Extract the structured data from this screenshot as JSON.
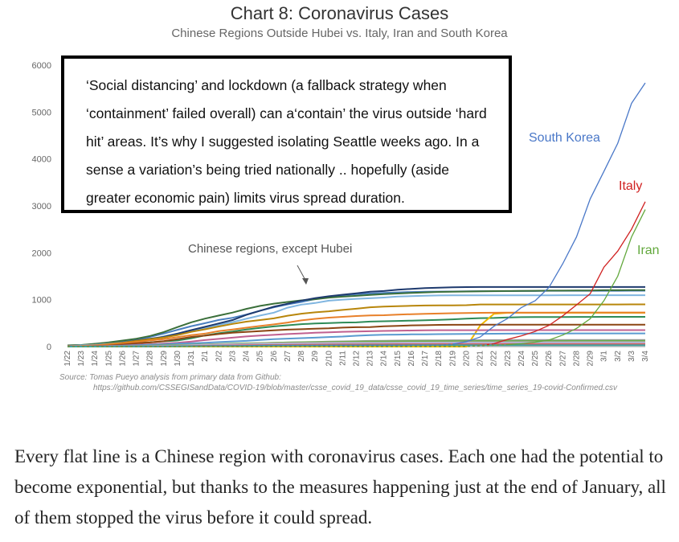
{
  "title": "Chart 8: Coronavirus Cases",
  "subtitle": "Chinese Regions Outside Hubei vs. Italy, Iran and South Korea",
  "callout_text": "‘Social distancing’ and lockdown (a fallback strategy when ‘containment’ failed overall) can a‘contain’ the virus outside ‘hard hit’ areas. It’s why I suggested isolating Seattle  weeks ago. In a sense a variation’s being tried nationally .. hopefully (aside greater economic pain) limits virus spread duration.",
  "source_line1": "Source: Tomas Pueyo analysis from primary data from Github:",
  "source_line2": "https://github.com/CSSEGISandData/COVID-19/blob/master/csse_covid_19_data/csse_covid_19_time_series/time_series_19-covid-Confirmed.csv",
  "caption": "Every flat line is a Chinese region with coronavirus cases. Each one had the potential to become exponential, but thanks to the measures happening just at the end of January, all of them stopped the virus before it could spread.",
  "chart_data": {
    "type": "line",
    "title": "Chart 8: Coronavirus Cases",
    "subtitle": "Chinese Regions Outside Hubei vs. Italy, Iran and South Korea",
    "x": [
      "1/22",
      "1/23",
      "1/24",
      "1/25",
      "1/26",
      "1/27",
      "1/28",
      "1/29",
      "1/30",
      "1/31",
      "2/1",
      "2/2",
      "2/3",
      "2/4",
      "2/5",
      "2/6",
      "2/7",
      "2/8",
      "2/9",
      "2/10",
      "2/11",
      "2/12",
      "2/13",
      "2/14",
      "2/15",
      "2/16",
      "2/17",
      "2/18",
      "2/19",
      "2/20",
      "2/21",
      "2/22",
      "2/23",
      "2/24",
      "2/25",
      "2/26",
      "2/27",
      "2/28",
      "2/29",
      "3/1",
      "3/2",
      "3/3",
      "3/4"
    ],
    "ylim": [
      0,
      6000
    ],
    "yticks": [
      0,
      1000,
      2000,
      3000,
      4000,
      5000,
      6000
    ],
    "grid": false,
    "annotations": {
      "south_korea": "South Korea",
      "italy": "Italy",
      "iran": "Iran",
      "chinese_regions": "Chinese regions, except Hubei"
    },
    "series": [
      {
        "name": "South Korea",
        "color": "#4a78c8",
        "dashed_start": true,
        "values": [
          1,
          1,
          2,
          2,
          3,
          4,
          4,
          4,
          4,
          11,
          12,
          15,
          15,
          16,
          19,
          23,
          24,
          24,
          25,
          27,
          28,
          28,
          28,
          28,
          28,
          29,
          30,
          31,
          51,
          104,
          204,
          433,
          602,
          833,
          977,
          1261,
          1766,
          2337,
          3150,
          3736,
          4335,
          5186,
          5621
        ]
      },
      {
        "name": "Italy",
        "color": "#d02020",
        "dashed_start": true,
        "values": [
          0,
          0,
          0,
          0,
          0,
          0,
          0,
          0,
          0,
          2,
          2,
          2,
          2,
          2,
          2,
          2,
          3,
          3,
          3,
          3,
          3,
          3,
          3,
          3,
          3,
          3,
          3,
          3,
          3,
          3,
          20,
          62,
          155,
          229,
          322,
          453,
          655,
          888,
          1128,
          1694,
          2036,
          2502,
          3089
        ]
      },
      {
        "name": "Iran",
        "color": "#62a83c",
        "dashed_start": true,
        "values": [
          0,
          0,
          0,
          0,
          0,
          0,
          0,
          0,
          0,
          0,
          0,
          0,
          0,
          0,
          0,
          0,
          0,
          0,
          0,
          0,
          0,
          0,
          0,
          0,
          0,
          0,
          0,
          0,
          2,
          5,
          18,
          28,
          43,
          61,
          95,
          139,
          245,
          388,
          593,
          978,
          1501,
          2336,
          2922
        ]
      },
      {
        "color": "#4a7fc0",
        "values": [
          26,
          32,
          53,
          78,
          111,
          151,
          207,
          277,
          358,
          436,
          499,
          568,
          614,
          683,
          767,
          838,
          900,
          951,
          1013,
          1059,
          1096,
          1117,
          1131,
          1145,
          1155,
          1164,
          1170,
          1172,
          1175,
          1177,
          1181,
          1182,
          1183,
          1184,
          1184,
          1190,
          1190,
          1190,
          1190,
          1190,
          1190,
          1191,
          1191
        ]
      },
      {
        "color": "#3a6f3a",
        "values": [
          26,
          34,
          60,
          90,
          128,
          168,
          226,
          311,
          417,
          518,
          597,
          661,
          725,
          804,
          868,
          916,
          952,
          986,
          1010,
          1044,
          1064,
          1082,
          1101,
          1117,
          1131,
          1145,
          1155,
          1165,
          1171,
          1175,
          1178,
          1183,
          1185,
          1188,
          1190,
          1193,
          1194,
          1196,
          1197,
          1201,
          1202,
          1204,
          1205
        ]
      },
      {
        "color": "#7fb5e0",
        "values": [
          9,
          25,
          40,
          61,
          80,
          100,
          143,
          221,
          277,
          332,
          389,
          463,
          521,
          593,
          661,
          724,
          829,
          895,
          930,
          979,
          1001,
          1018,
          1030,
          1046,
          1066,
          1075,
          1084,
          1091,
          1093,
          1093,
          1093,
          1093,
          1094,
          1094,
          1094,
          1094,
          1095,
          1095,
          1095,
          1095,
          1095,
          1095,
          1095
        ]
      },
      {
        "color": "#1e3a6e",
        "values": [
          1,
          5,
          9,
          32,
          83,
          128,
          168,
          206,
          278,
          352,
          422,
          493,
          566,
          675,
          764,
          851,
          914,
          981,
          1033,
          1073,
          1105,
          1135,
          1169,
          1184,
          1212,
          1231,
          1246,
          1256,
          1265,
          1268,
          1270,
          1270,
          1270,
          1270,
          1271,
          1271,
          1271,
          1271,
          1271,
          1271,
          1271,
          1271,
          1271
        ]
      },
      {
        "color": "#b8860b",
        "values": [
          5,
          5,
          22,
          53,
          83,
          121,
          158,
          193,
          247,
          313,
          368,
          428,
          483,
          532,
          565,
          601,
          659,
          702,
          731,
          752,
          782,
          807,
          839,
          852,
          860,
          869,
          876,
          878,
          878,
          883,
          898,
          898,
          898,
          898,
          898,
          898,
          899,
          899,
          899,
          899,
          899,
          900,
          900
        ]
      },
      {
        "color": "#2e8b57",
        "values": [
          2,
          9,
          22,
          36,
          46,
          80,
          91,
          111,
          131,
          177,
          238,
          284,
          320,
          363,
          398,
          430,
          455,
          479,
          492,
          503,
          513,
          516,
          533,
          540,
          546,
          553,
          562,
          570,
          582,
          597,
          606,
          610,
          620,
          628,
          630,
          631,
          631,
          632,
          633,
          634,
          634,
          634,
          634
        ]
      },
      {
        "color": "#f0b800",
        "values": [
          0,
          0,
          0,
          0,
          0,
          0,
          0,
          0,
          0,
          0,
          0,
          0,
          0,
          0,
          0,
          0,
          0,
          0,
          0,
          0,
          0,
          0,
          0,
          0,
          0,
          0,
          0,
          0,
          0,
          0,
          450,
          700,
          720,
          720,
          720,
          720,
          720,
          720,
          720,
          720,
          720,
          720,
          720
        ]
      },
      {
        "color": "#e8802a",
        "values": [
          10,
          16,
          27,
          44,
          69,
          100,
          130,
          158,
          202,
          244,
          277,
          329,
          363,
          403,
          439,
          473,
          513,
          559,
          591,
          617,
          635,
          652,
          663,
          669,
          683,
          691,
          697,
          705,
          712,
          716,
          720,
          722,
          724,
          724,
          725,
          725,
          726,
          726,
          726,
          726,
          726,
          726,
          727
        ]
      },
      {
        "color": "#8b4513",
        "values": [
          1,
          5,
          15,
          23,
          43,
          68,
          88,
          117,
          160,
          205,
          234,
          267,
          295,
          312,
          329,
          347,
          361,
          371,
          382,
          389,
          404,
          413,
          417,
          432,
          441,
          452,
          456,
          463,
          465,
          465,
          466,
          466,
          467,
          467,
          467,
          467,
          467,
          467,
          467,
          467,
          467,
          467,
          467
        ]
      },
      {
        "color": "#c06090",
        "values": [
          4,
          7,
          10,
          15,
          24,
          40,
          50,
          64,
          83,
          108,
          138,
          165,
          191,
          216,
          236,
          251,
          267,
          281,
          295,
          305,
          315,
          321,
          328,
          335,
          338,
          343,
          346,
          349,
          349,
          350,
          350,
          351,
          351,
          351,
          351,
          351,
          351,
          351,
          351,
          351,
          351,
          351,
          351
        ]
      },
      {
        "color": "#5a9ad0",
        "values": [
          1,
          2,
          3,
          10,
          17,
          27,
          37,
          47,
          62,
          71,
          82,
          96,
          109,
          122,
          141,
          158,
          169,
          180,
          191,
          204,
          215,
          231,
          245,
          254,
          256,
          260,
          263,
          266,
          268,
          270,
          272,
          275,
          276,
          277,
          278,
          279,
          280,
          281,
          282,
          282,
          282,
          282,
          282
        ]
      },
      {
        "color": "#9a9a9a",
        "values": [
          0,
          1,
          3,
          5,
          7,
          10,
          14,
          20,
          26,
          34,
          42,
          50,
          58,
          65,
          72,
          80,
          87,
          94,
          100,
          106,
          112,
          117,
          121,
          125,
          128,
          130,
          132,
          134,
          135,
          136,
          137,
          138,
          139,
          140,
          140,
          141,
          141,
          142,
          142,
          142,
          142,
          142,
          142
        ]
      },
      {
        "color": "#6ab04c",
        "values": [
          0,
          2,
          4,
          7,
          10,
          14,
          19,
          25,
          32,
          40,
          48,
          56,
          63,
          70,
          76,
          82,
          87,
          92,
          96,
          100,
          103,
          106,
          108,
          110,
          112,
          113,
          114,
          115,
          116,
          117,
          118,
          118,
          119,
          119,
          120,
          120,
          120,
          121,
          121,
          121,
          121,
          121,
          121
        ]
      },
      {
        "color": "#d4a0d0",
        "values": [
          0,
          1,
          2,
          3,
          5,
          8,
          12,
          17,
          23,
          30,
          37,
          44,
          51,
          57,
          62,
          66,
          70,
          73,
          76,
          78,
          80,
          81,
          82,
          83,
          84,
          85,
          86,
          87,
          88,
          89,
          90,
          91,
          91,
          92,
          92,
          92,
          93,
          93,
          93,
          93,
          93,
          93,
          93
        ]
      },
      {
        "color": "#a0c0e0",
        "values": [
          0,
          0,
          1,
          2,
          3,
          5,
          8,
          11,
          15,
          20,
          26,
          32,
          38,
          43,
          48,
          52,
          56,
          59,
          62,
          64,
          66,
          68,
          69,
          70,
          71,
          72,
          73,
          74,
          75,
          75,
          76,
          76,
          77,
          77,
          77,
          78,
          78,
          78,
          78,
          78,
          78,
          78,
          78
        ]
      },
      {
        "color": "#e06060",
        "values": [
          0,
          0,
          1,
          1,
          2,
          3,
          5,
          7,
          10,
          14,
          18,
          22,
          26,
          30,
          33,
          36,
          39,
          41,
          43,
          45,
          47,
          48,
          49,
          50,
          51,
          52,
          52,
          53,
          53,
          54,
          54,
          54,
          55,
          55,
          55,
          55,
          55,
          55,
          55,
          55,
          55,
          55,
          55
        ]
      },
      {
        "color": "#40a0a0",
        "values": [
          0,
          0,
          0,
          1,
          1,
          2,
          3,
          4,
          6,
          8,
          10,
          12,
          14,
          16,
          18,
          20,
          21,
          22,
          23,
          24,
          25,
          26,
          27,
          28,
          28,
          29,
          29,
          30,
          30,
          30,
          31,
          31,
          31,
          31,
          31,
          31,
          31,
          31,
          31,
          31,
          31,
          31,
          31
        ]
      }
    ]
  }
}
